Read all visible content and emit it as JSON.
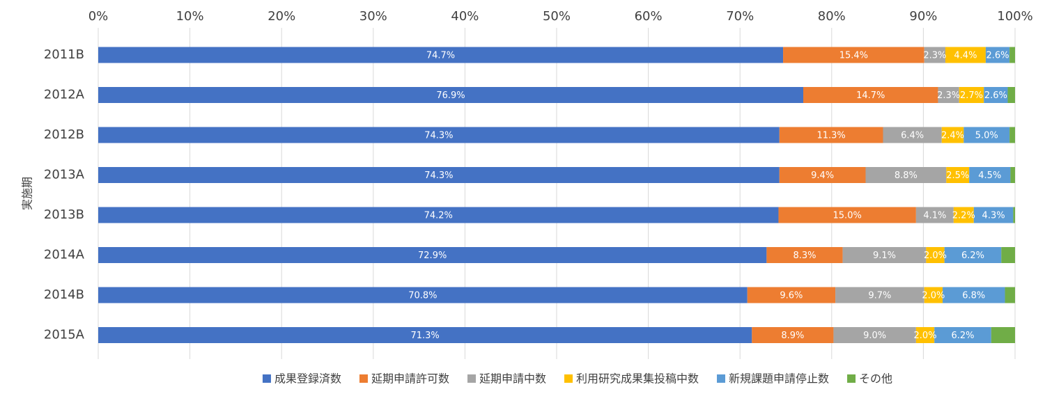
{
  "chart_data": {
    "type": "bar",
    "orientation": "horizontal",
    "stacked": "percent",
    "ylabel": "実施期",
    "xlim": [
      0,
      100
    ],
    "x_ticks": [
      "0%",
      "10%",
      "20%",
      "30%",
      "40%",
      "50%",
      "60%",
      "70%",
      "80%",
      "90%",
      "100%"
    ],
    "categories": [
      "2011B",
      "2012A",
      "2012B",
      "2013A",
      "2013B",
      "2014A",
      "2014B",
      "2015A"
    ],
    "grid": true,
    "legend_position": "bottom",
    "series": [
      {
        "name": "成果登録済数",
        "color": "#4472C4",
        "label_color": "#ffffff",
        "values": [
          74.7,
          76.9,
          74.3,
          74.3,
          74.2,
          72.9,
          70.8,
          71.3
        ],
        "labels": [
          "74.7%",
          "76.9%",
          "74.3%",
          "74.3%",
          "74.2%",
          "72.9%",
          "70.8%",
          "71.3%"
        ]
      },
      {
        "name": "延期申請許可数",
        "color": "#ED7D31",
        "label_color": "#ffffff",
        "values": [
          15.4,
          14.7,
          11.3,
          9.4,
          15.0,
          8.3,
          9.6,
          8.9
        ],
        "labels": [
          "15.4%",
          "14.7%",
          "11.3%",
          "9.4%",
          "15.0%",
          "8.3%",
          "9.6%",
          "8.9%"
        ]
      },
      {
        "name": "延期申請中数",
        "color": "#A5A5A5",
        "label_color": "#ffffff",
        "values": [
          2.3,
          2.3,
          6.4,
          8.8,
          4.1,
          9.1,
          9.7,
          9.0
        ],
        "labels": [
          "2.3%",
          "2.3%",
          "6.4%",
          "8.8%",
          "4.1%",
          "9.1%",
          "9.7%",
          "9.0%"
        ]
      },
      {
        "name": "利用研究成果集投稿中数",
        "color": "#FFC000",
        "label_color": "#ffffff",
        "values": [
          4.4,
          2.7,
          2.4,
          2.5,
          2.2,
          2.0,
          2.0,
          2.0
        ],
        "labels": [
          "4.4%",
          "2.7%",
          "2.4%",
          "2.5%",
          "2.2%",
          "2.0%",
          "2.0%",
          "2.0%"
        ]
      },
      {
        "name": "新規課題申請停止数",
        "color": "#5B9BD5",
        "label_color": "#ffffff",
        "values": [
          2.6,
          2.6,
          5.0,
          4.5,
          4.3,
          6.2,
          6.8,
          6.2
        ],
        "labels": [
          "2.6%",
          "2.6%",
          "5.0%",
          "4.5%",
          "4.3%",
          "6.2%",
          "6.8%",
          "6.2%"
        ]
      },
      {
        "name": "その他",
        "color": "#70AD47",
        "label_color": "#ffffff",
        "values": [
          0.6,
          0.8,
          0.6,
          0.5,
          0.2,
          1.5,
          1.1,
          2.6
        ],
        "labels": [
          "",
          "",
          "",
          "",
          "",
          "",
          "",
          ""
        ]
      }
    ]
  }
}
